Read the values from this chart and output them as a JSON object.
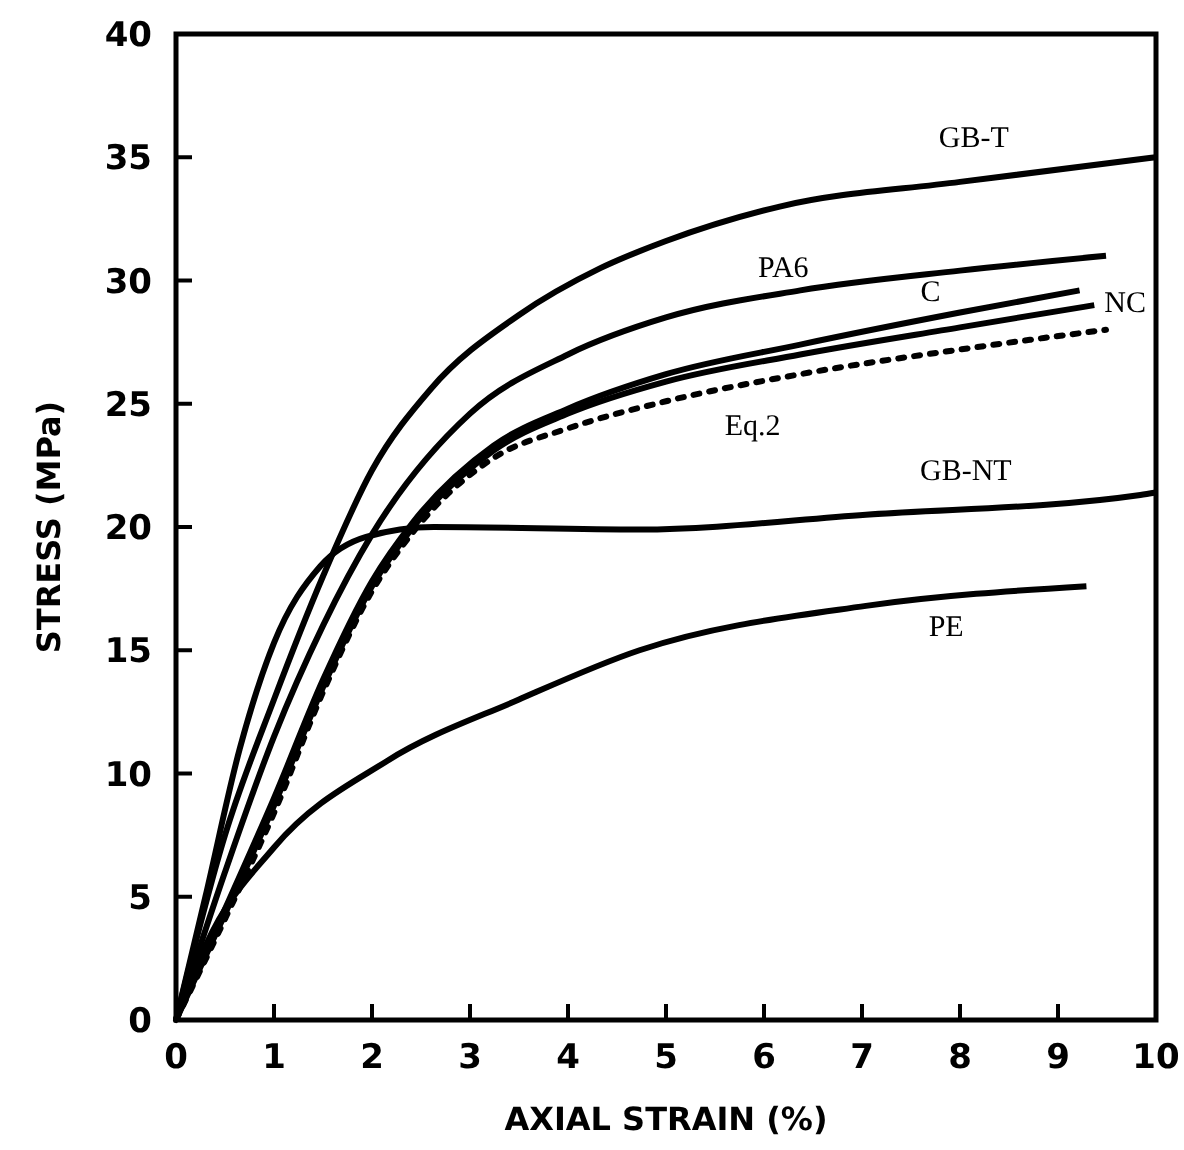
{
  "chart_data": {
    "type": "line",
    "xlabel": "AXIAL STRAIN (%)",
    "ylabel": "STRESS (MPa)",
    "xlim": [
      0,
      10
    ],
    "ylim": [
      0,
      40
    ],
    "xticks": [
      0,
      1,
      2,
      3,
      4,
      5,
      6,
      7,
      8,
      9,
      10
    ],
    "yticks": [
      0,
      5,
      10,
      15,
      20,
      25,
      30,
      35,
      40
    ],
    "series": [
      {
        "name": "GB-T",
        "color": "#000000",
        "line_style": "solid",
        "x": [
          0,
          0.5,
          1,
          1.5,
          2,
          2.6,
          3.5,
          4.33,
          5,
          6.16,
          8,
          10
        ],
        "values": [
          0,
          7.5,
          13,
          18,
          22.3,
          25.6,
          28.6,
          30.5,
          31.6,
          33,
          34,
          35
        ]
      },
      {
        "name": "PA6",
        "color": "#000000",
        "line_style": "solid",
        "x": [
          0,
          0.5,
          1,
          1.5,
          2,
          3,
          4,
          5,
          6.37,
          8,
          9.49
        ],
        "values": [
          0,
          6,
          11.5,
          16,
          19.7,
          24.6,
          27,
          28.5,
          29.6,
          30.4,
          31
        ]
      },
      {
        "name": "C",
        "color": "#000000",
        "line_style": "solid",
        "x": [
          0,
          0.5,
          1,
          1.5,
          2,
          2.42,
          3.24,
          4,
          5,
          6.37,
          8,
          9.22
        ],
        "values": [
          0,
          4.5,
          9,
          13.8,
          17.8,
          20.2,
          23.3,
          24.8,
          26.2,
          27.4,
          28.7,
          29.6
        ]
      },
      {
        "name": "NC",
        "color": "#000000",
        "line_style": "solid",
        "x": [
          0,
          0.5,
          1,
          1.5,
          2,
          2.42,
          3.24,
          4,
          5,
          6.37,
          8,
          9.37
        ],
        "values": [
          0,
          4.3,
          8.7,
          13.5,
          17.6,
          20,
          23.1,
          24.6,
          25.9,
          27,
          28.1,
          29
        ]
      },
      {
        "name": "Eq.2",
        "color": "#000000",
        "line_style": "dotted",
        "x": [
          0,
          0.5,
          1,
          1.5,
          2,
          2.42,
          3.24,
          4,
          5,
          6.37,
          8,
          9.49
        ],
        "values": [
          0,
          4.1,
          8.4,
          13.3,
          17.4,
          19.8,
          22.8,
          24,
          25.1,
          26.2,
          27.2,
          28
        ]
      },
      {
        "name": "GB-NT",
        "color": "#000000",
        "line_style": "solid",
        "x": [
          0,
          0.3,
          0.65,
          1,
          1.47,
          1.94,
          2.63,
          4.73,
          7.04,
          9.84,
          10
        ],
        "values": [
          0,
          5,
          11,
          15.3,
          18.4,
          19.6,
          20,
          19.9,
          20.5,
          21.3,
          21.4
        ]
      },
      {
        "name": "PE",
        "color": "#000000",
        "line_style": "solid",
        "x": [
          0,
          0.3,
          1,
          2.15,
          3.5,
          4.73,
          7.04,
          9.29
        ],
        "values": [
          0,
          3,
          7,
          10.5,
          13,
          15,
          16.8,
          17.6
        ]
      }
    ]
  }
}
